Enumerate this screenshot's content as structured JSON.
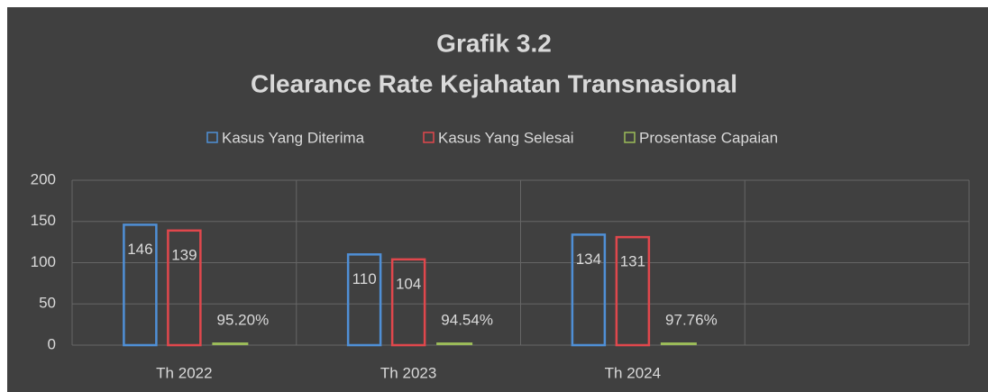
{
  "chart_data": {
    "type": "bar",
    "title": "Grafik 3.2",
    "subtitle": "Clearance Rate Kejahatan Transnasional",
    "categories": [
      "Th 2022",
      "Th 2023",
      "Th 2024",
      null
    ],
    "series": [
      {
        "name": "Kasus Yang Diterima",
        "color": "#4f8fd6",
        "values": [
          146,
          110,
          134,
          null
        ]
      },
      {
        "name": "Kasus Yang Selesai",
        "color": "#e0474c",
        "values": [
          139,
          104,
          131,
          null
        ]
      },
      {
        "name": "Prosentase Capaian",
        "color": "#9bbb59",
        "values": [
          0.952,
          0.9454,
          0.9776,
          null
        ],
        "value_labels": [
          "95.20%",
          "94.54%",
          "97.76%",
          null
        ]
      }
    ],
    "ylim": [
      0,
      200
    ],
    "yticks": [
      0,
      50,
      100,
      150,
      200
    ],
    "grid": true,
    "legend": "top"
  }
}
